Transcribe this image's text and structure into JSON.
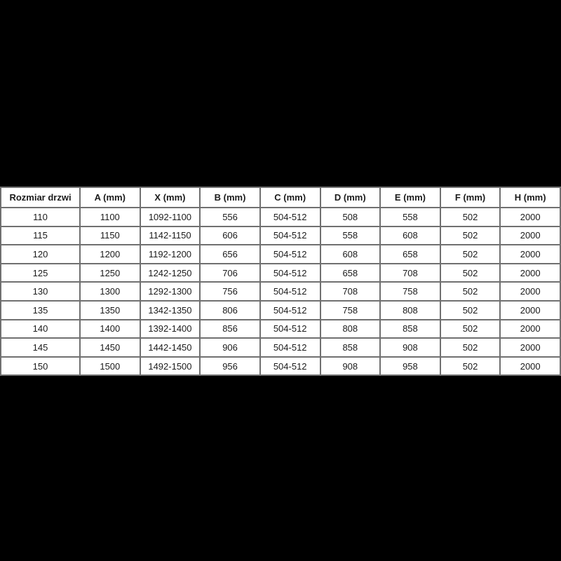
{
  "colors": {
    "page_background": "#000000",
    "cell_background": "#ffffff",
    "grid_border": "#707070",
    "text": "#1b1b1b"
  },
  "table": {
    "columns": [
      "Rozmiar drzwi",
      "A (mm)",
      "X (mm)",
      "B (mm)",
      "C (mm)",
      "D (mm)",
      "E (mm)",
      "F (mm)",
      "H (mm)"
    ],
    "rows": [
      [
        "110",
        "1100",
        "1092-1100",
        "556",
        "504-512",
        "508",
        "558",
        "502",
        "2000"
      ],
      [
        "115",
        "1150",
        "1142-1150",
        "606",
        "504-512",
        "558",
        "608",
        "502",
        "2000"
      ],
      [
        "120",
        "1200",
        "1192-1200",
        "656",
        "504-512",
        "608",
        "658",
        "502",
        "2000"
      ],
      [
        "125",
        "1250",
        "1242-1250",
        "706",
        "504-512",
        "658",
        "708",
        "502",
        "2000"
      ],
      [
        "130",
        "1300",
        "1292-1300",
        "756",
        "504-512",
        "708",
        "758",
        "502",
        "2000"
      ],
      [
        "135",
        "1350",
        "1342-1350",
        "806",
        "504-512",
        "758",
        "808",
        "502",
        "2000"
      ],
      [
        "140",
        "1400",
        "1392-1400",
        "856",
        "504-512",
        "808",
        "858",
        "502",
        "2000"
      ],
      [
        "145",
        "1450",
        "1442-1450",
        "906",
        "504-512",
        "858",
        "908",
        "502",
        "2000"
      ],
      [
        "150",
        "1500",
        "1492-1500",
        "956",
        "504-512",
        "908",
        "958",
        "502",
        "2000"
      ]
    ]
  },
  "chart_data": {
    "type": "table",
    "title": "",
    "columns": [
      "Rozmiar drzwi",
      "A (mm)",
      "X (mm)",
      "B (mm)",
      "C (mm)",
      "D (mm)",
      "E (mm)",
      "F (mm)",
      "H (mm)"
    ],
    "rows": [
      [
        "110",
        "1100",
        "1092-1100",
        "556",
        "504-512",
        "508",
        "558",
        "502",
        "2000"
      ],
      [
        "115",
        "1150",
        "1142-1150",
        "606",
        "504-512",
        "558",
        "608",
        "502",
        "2000"
      ],
      [
        "120",
        "1200",
        "1192-1200",
        "656",
        "504-512",
        "608",
        "658",
        "502",
        "2000"
      ],
      [
        "125",
        "1250",
        "1242-1250",
        "706",
        "504-512",
        "658",
        "708",
        "502",
        "2000"
      ],
      [
        "130",
        "1300",
        "1292-1300",
        "756",
        "504-512",
        "708",
        "758",
        "502",
        "2000"
      ],
      [
        "135",
        "1350",
        "1342-1350",
        "806",
        "504-512",
        "758",
        "808",
        "502",
        "2000"
      ],
      [
        "140",
        "1400",
        "1392-1400",
        "856",
        "504-512",
        "808",
        "858",
        "502",
        "2000"
      ],
      [
        "145",
        "1450",
        "1442-1450",
        "906",
        "504-512",
        "858",
        "908",
        "502",
        "2000"
      ],
      [
        "150",
        "1500",
        "1492-1500",
        "956",
        "504-512",
        "908",
        "958",
        "502",
        "2000"
      ]
    ]
  }
}
